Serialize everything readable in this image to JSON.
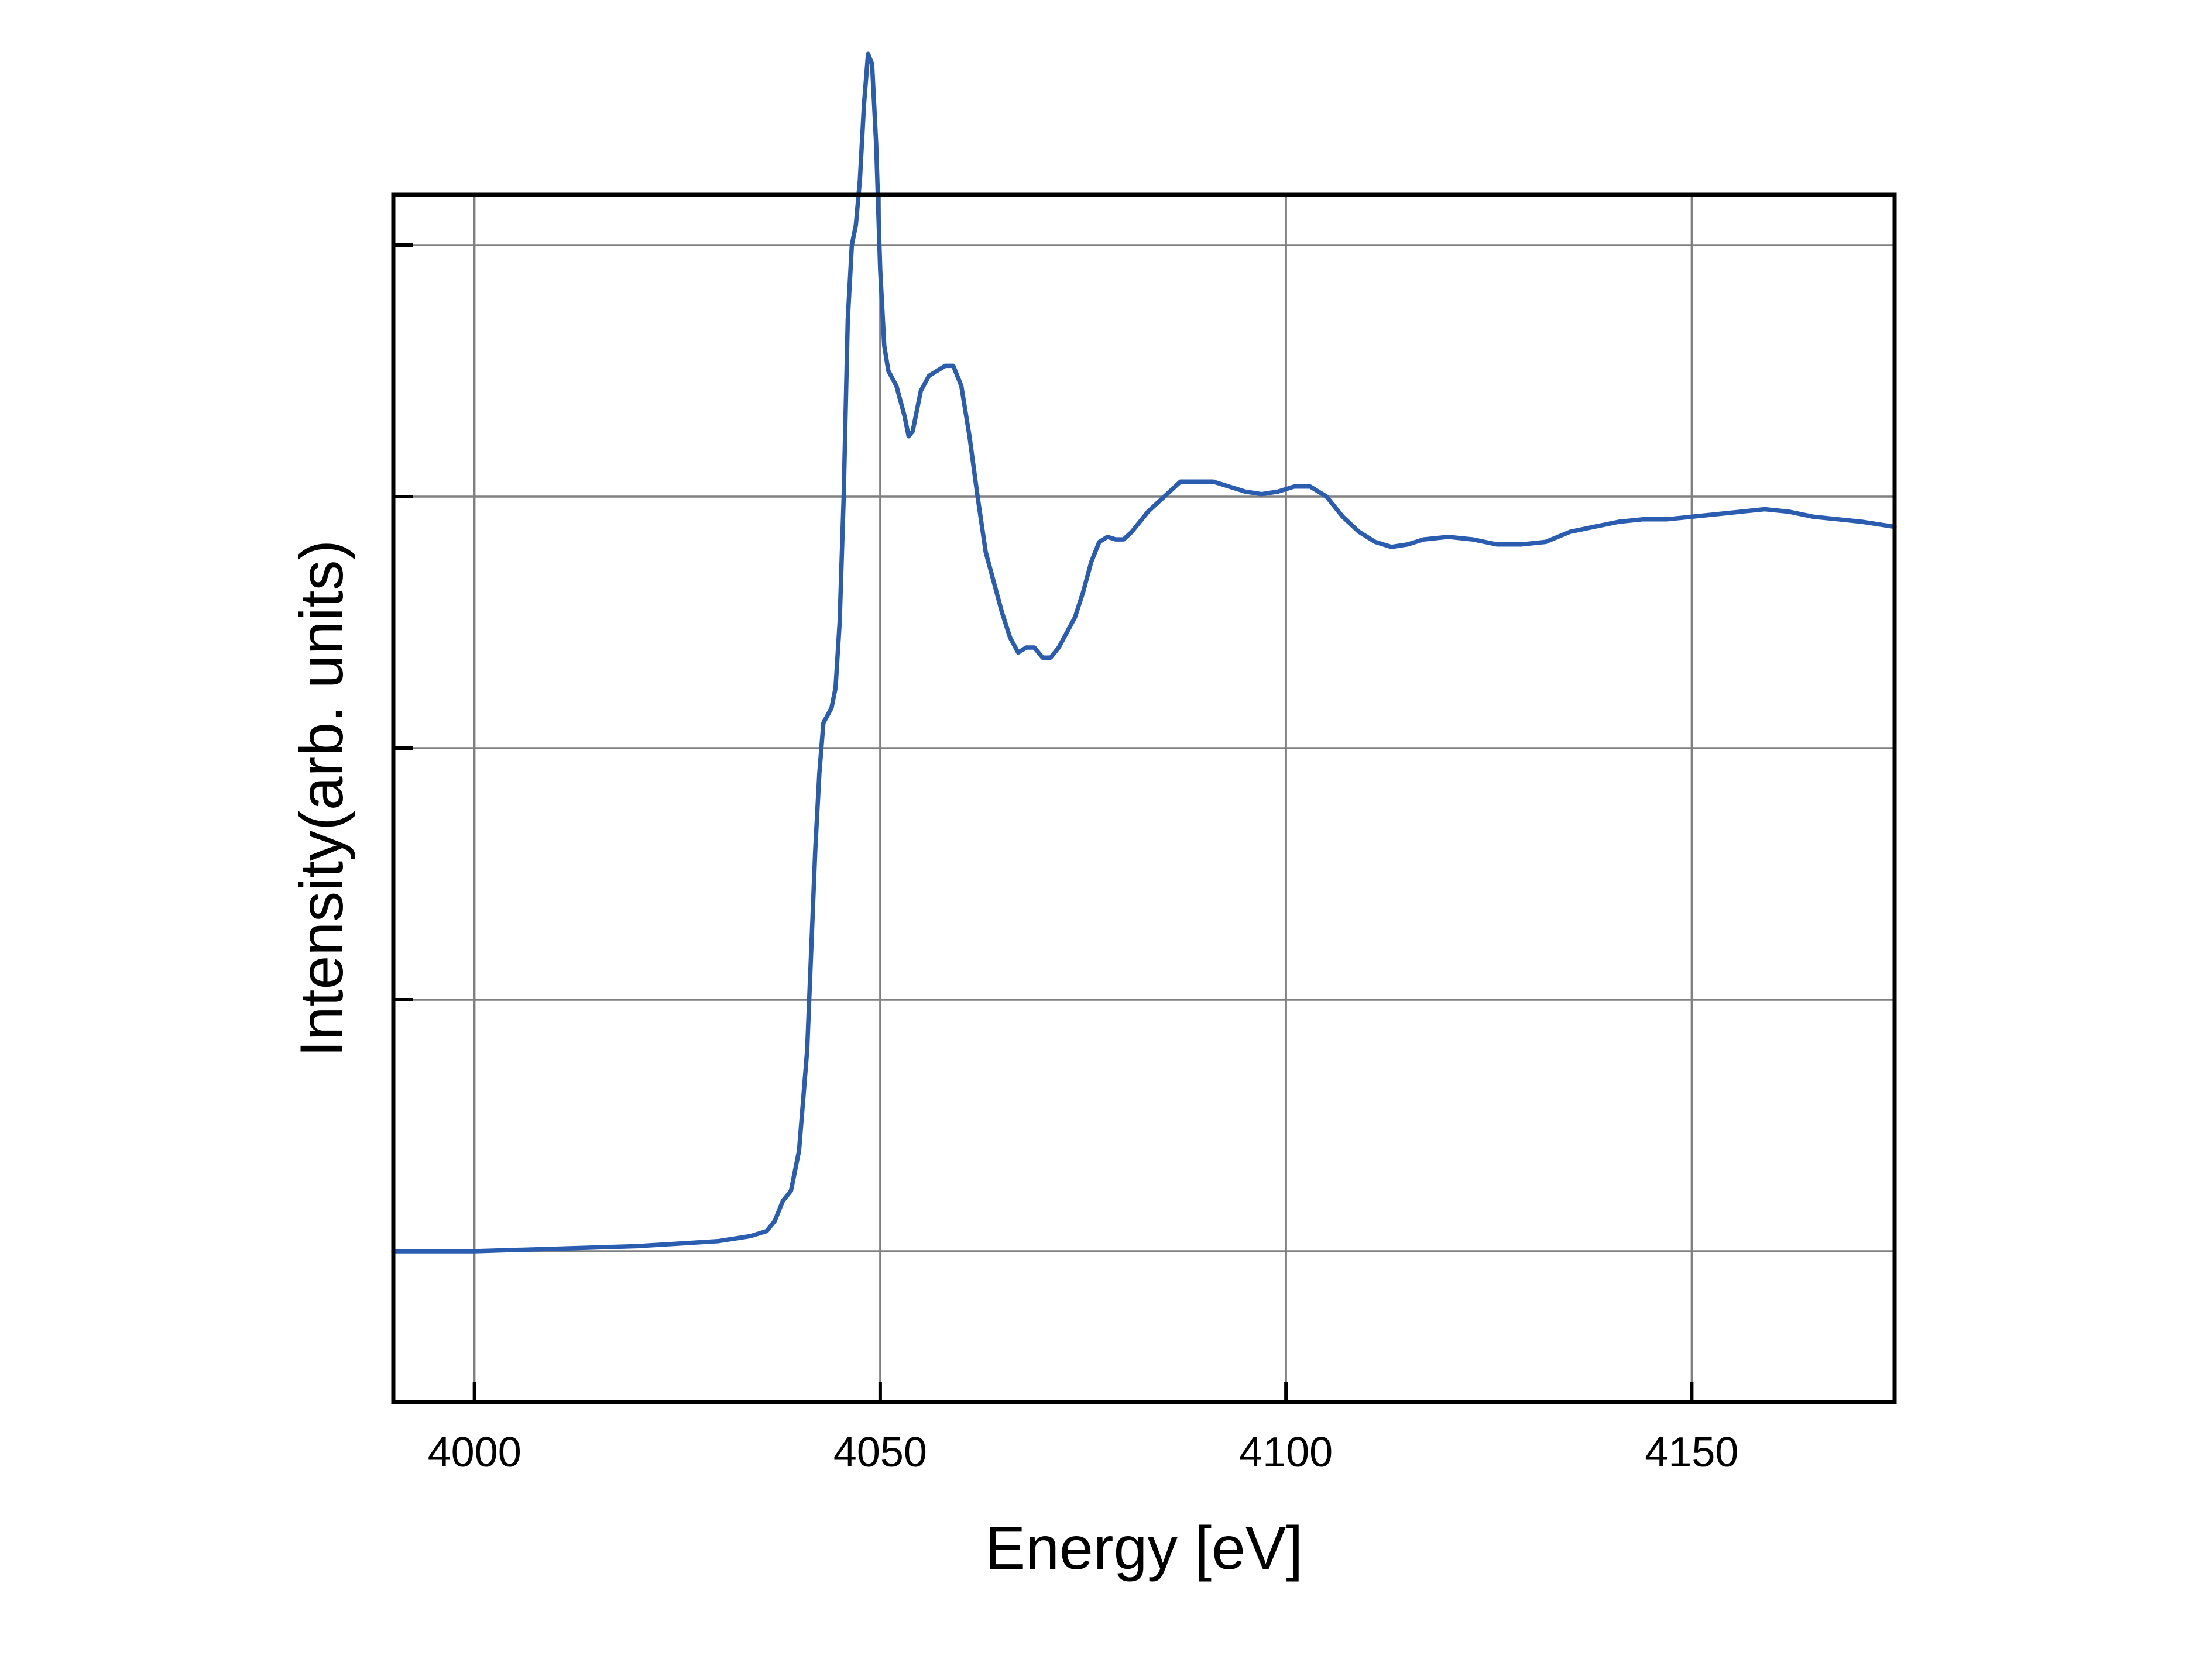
{
  "chart_data": {
    "type": "line",
    "title": "",
    "xlabel": "Energy [eV]",
    "ylabel": "Intensity(arb. units)",
    "xlim": [
      3990,
      4175
    ],
    "ylim": [
      -0.3,
      2.1
    ],
    "x_ticks": [
      4000,
      4050,
      4100,
      4150
    ],
    "y_ticks": [
      0,
      0.5,
      1.0,
      1.5,
      2.0
    ],
    "y_tick_labels_shown": false,
    "grid": true,
    "legend": "none",
    "colors": {
      "line": "#2a5db0",
      "grid": "#808080",
      "axis": "#000000"
    },
    "series": [
      {
        "x": [
          3990,
          4000,
          4010,
          4020,
          4030,
          4034,
          4036,
          4037,
          4038,
          4039,
          4040,
          4041,
          4042,
          4042.5,
          4043,
          4044,
          4044.5,
          4045,
          4045.5,
          4046,
          4046.5,
          4047,
          4047.5,
          4048,
          4048.5,
          4049,
          4049.5,
          4050,
          4050.5,
          4051,
          4052,
          4053,
          4053.5,
          4054,
          4055,
          4056,
          4057,
          4058,
          4059,
          4060,
          4061,
          4062,
          4063,
          4064,
          4065,
          4066,
          4067,
          4068,
          4069,
          4070,
          4071,
          4072,
          4073,
          4074,
          4075,
          4076,
          4077,
          4078,
          4079,
          4080,
          4081,
          4083,
          4085,
          4087,
          4089,
          4091,
          4093,
          4095,
          4097,
          4099,
          4101,
          4103,
          4105,
          4107,
          4109,
          4111,
          4113,
          4115,
          4117,
          4120,
          4123,
          4126,
          4129,
          4132,
          4135,
          4138,
          4141,
          4144,
          4147,
          4150,
          4153,
          4156,
          4159,
          4162,
          4165,
          4168,
          4171,
          4175
        ],
        "y": [
          0.0,
          0.0,
          0.005,
          0.01,
          0.02,
          0.03,
          0.04,
          0.06,
          0.1,
          0.12,
          0.2,
          0.4,
          0.8,
          0.95,
          1.05,
          1.08,
          1.12,
          1.25,
          1.5,
          1.85,
          2.0,
          2.04,
          2.13,
          2.28,
          2.38,
          2.36,
          2.2,
          1.95,
          1.8,
          1.75,
          1.72,
          1.66,
          1.62,
          1.63,
          1.71,
          1.74,
          1.75,
          1.76,
          1.76,
          1.72,
          1.62,
          1.5,
          1.39,
          1.33,
          1.27,
          1.22,
          1.19,
          1.2,
          1.2,
          1.18,
          1.18,
          1.2,
          1.23,
          1.26,
          1.31,
          1.37,
          1.41,
          1.42,
          1.415,
          1.415,
          1.43,
          1.47,
          1.5,
          1.53,
          1.53,
          1.53,
          1.52,
          1.51,
          1.505,
          1.51,
          1.52,
          1.52,
          1.5,
          1.46,
          1.43,
          1.41,
          1.4,
          1.405,
          1.415,
          1.42,
          1.415,
          1.405,
          1.405,
          1.41,
          1.43,
          1.44,
          1.45,
          1.455,
          1.455,
          1.46,
          1.465,
          1.47,
          1.475,
          1.47,
          1.46,
          1.455,
          1.45,
          1.44
        ]
      }
    ]
  }
}
